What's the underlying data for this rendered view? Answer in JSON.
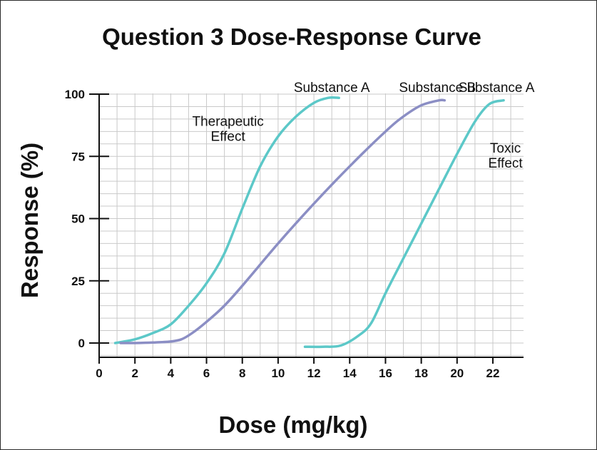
{
  "chart_data": {
    "type": "line",
    "title": "Question 3 Dose-Response Curve",
    "xlabel": "Dose (mg/kg)",
    "ylabel": "Response (%)",
    "xlim": [
      0,
      24
    ],
    "ylim": [
      -6,
      100
    ],
    "x_ticks": [
      0,
      2,
      4,
      6,
      8,
      10,
      12,
      14,
      16,
      18,
      20,
      22
    ],
    "y_ticks": [
      0,
      25,
      50,
      75,
      100
    ],
    "grid": true,
    "legend": "none",
    "series": [
      {
        "name": "Substance A",
        "color": "#5cc8c8",
        "x": [
          0.9,
          2,
          3,
          4,
          5,
          6,
          7,
          8,
          9,
          10,
          11,
          12,
          12.8,
          13.4
        ],
        "y": [
          0,
          1.5,
          4,
          7.5,
          15,
          24,
          36,
          54,
          71,
          83,
          91,
          96.5,
          98.5,
          98.5
        ]
      },
      {
        "name": "Substance B",
        "color": "#8b8ec4",
        "x": [
          1.2,
          2,
          3,
          4,
          4.6,
          5.2,
          6,
          7,
          8,
          10,
          12,
          14,
          16,
          17,
          18,
          19,
          19.3
        ],
        "y": [
          0,
          0,
          0.2,
          0.6,
          1.5,
          4,
          8.5,
          15,
          23,
          40,
          56,
          71,
          85,
          91,
          95.5,
          97.5,
          97.5
        ]
      },
      {
        "name": "Substance A",
        "color": "#5cc8c8",
        "x": [
          11.5,
          12.5,
          13.5,
          14.5,
          15.2,
          16,
          17,
          18,
          19,
          20,
          21,
          21.8,
          22.6
        ],
        "y": [
          -1.5,
          -1.5,
          -1,
          3,
          8,
          20,
          34,
          48,
          62,
          76,
          89,
          96,
          97.5
        ]
      }
    ],
    "annotations": [
      {
        "id": "therapeutic",
        "lines": [
          "Therapeutic",
          "Effect"
        ],
        "x": 7.2,
        "y": 87.2
      },
      {
        "id": "toxic",
        "lines": [
          "Toxic",
          "Effect"
        ],
        "x": 22.7,
        "y": 76.5
      }
    ]
  }
}
